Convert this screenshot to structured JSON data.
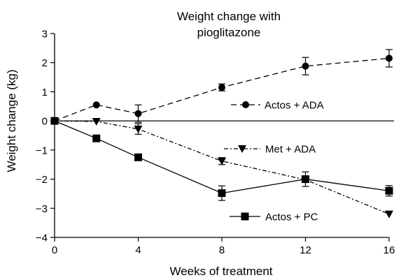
{
  "chart_data": {
    "type": "line",
    "title": [
      "Weight change with",
      "pioglitazone"
    ],
    "xlabel": "Weeks of treatment",
    "ylabel": "Weight change (kg)",
    "xlim": [
      0,
      16
    ],
    "ylim": [
      -4,
      3
    ],
    "x_ticks": [
      0,
      4,
      8,
      12,
      16
    ],
    "y_ticks": [
      -4,
      -3,
      -2,
      -1,
      0,
      1,
      2,
      3
    ],
    "y_tick_labels": [
      "−4",
      "−3",
      "−2",
      "−1",
      "0",
      "1",
      "2",
      "3"
    ],
    "zero_line": true,
    "grid": false,
    "series": [
      {
        "name": "Actos + ADA",
        "marker": "circle",
        "line_style": "dashed",
        "x": [
          0,
          2,
          4,
          8,
          12,
          16
        ],
        "y": [
          0,
          0.55,
          0.25,
          1.15,
          1.88,
          2.15
        ],
        "err": [
          0,
          0,
          0.3,
          0.12,
          0.3,
          0.3
        ]
      },
      {
        "name": "Met + ADA",
        "marker": "triangle-down",
        "line_style": "dash-dot",
        "x": [
          0,
          2,
          4,
          8,
          12,
          16
        ],
        "y": [
          0,
          -0.02,
          -0.28,
          -1.38,
          -2.02,
          -3.2
        ],
        "err": [
          0,
          0,
          0.18,
          0.12,
          0,
          0
        ]
      },
      {
        "name": "Actos + PC",
        "marker": "square",
        "line_style": "solid",
        "x": [
          0,
          2,
          4,
          8,
          12,
          16
        ],
        "y": [
          0,
          -0.6,
          -1.25,
          -2.48,
          -2.0,
          -2.4
        ],
        "err": [
          0,
          0,
          0,
          0.25,
          0.25,
          0.18
        ]
      }
    ],
    "legend": {
      "placement": "inline-beside-lines",
      "labels": [
        "Actos + ADA",
        "Met + ADA",
        "Actos + PC"
      ]
    }
  }
}
